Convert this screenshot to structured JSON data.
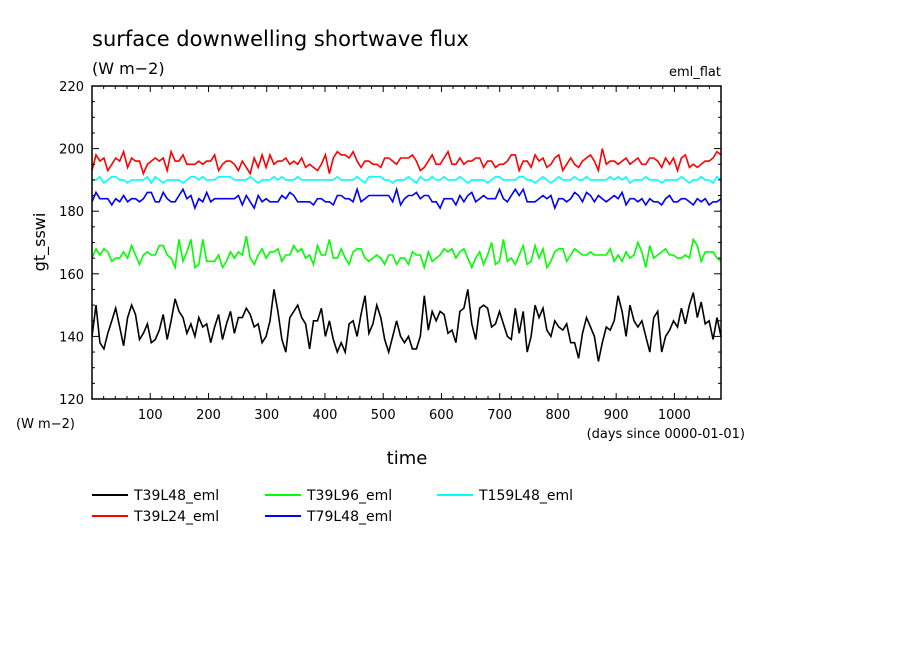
{
  "chart_data": {
    "type": "line",
    "title": "surface downwelling shortwave flux",
    "subtitle": "(W m−2)",
    "corner_label": "eml_flat",
    "xlabel": "time",
    "x_unit_label": "(days since 0000-01-01)",
    "ylabel": "gt_sswi",
    "y_unit_label": "(W m−2)",
    "xlim": [
      0,
      1080
    ],
    "ylim": [
      120,
      220
    ],
    "x_ticks": [
      "100",
      "200",
      "300",
      "400",
      "500",
      "600",
      "700",
      "800",
      "900",
      "1000"
    ],
    "y_ticks": [
      "120",
      "140",
      "160",
      "180",
      "200",
      "220"
    ],
    "grid": false,
    "legend_position": "bottom",
    "series": [
      {
        "name": "T39L48_eml",
        "color": "#000000",
        "values": [
          140,
          150,
          138,
          136,
          141,
          145,
          149,
          143,
          137,
          146,
          150,
          147,
          139,
          141,
          144,
          138,
          139,
          142,
          147,
          139,
          145,
          152,
          148,
          146,
          141,
          144,
          140,
          146,
          143,
          144,
          138,
          143,
          147,
          139,
          144,
          148,
          141,
          146,
          146,
          149,
          147,
          143,
          144,
          138,
          140,
          145,
          155,
          148,
          139,
          135,
          146,
          148,
          150,
          146,
          144,
          136,
          145,
          145,
          149,
          140,
          145,
          139,
          135,
          138,
          135,
          144,
          145,
          140,
          147,
          153,
          141,
          144,
          150,
          146,
          139,
          135,
          140,
          145,
          140,
          138,
          140,
          136,
          136,
          140,
          153,
          142,
          148,
          145,
          148,
          147,
          141,
          142,
          138,
          148,
          149,
          155,
          144,
          139,
          149,
          150,
          149,
          143,
          144,
          148,
          144,
          140,
          139,
          149,
          141,
          148,
          135,
          140,
          150,
          146,
          149,
          142,
          140,
          145,
          143,
          142,
          144,
          138,
          138,
          133,
          141,
          146,
          143,
          140,
          132,
          138,
          143,
          142,
          145,
          153,
          148,
          140,
          150,
          145,
          143,
          145,
          140,
          135,
          146,
          148,
          135,
          140,
          142,
          145,
          143,
          149,
          144,
          150,
          154,
          146,
          151,
          144,
          145,
          139,
          146,
          140
        ]
      },
      {
        "name": "T39L24_eml",
        "color": "#ff0000",
        "values": [
          193,
          198,
          196,
          197,
          193,
          195,
          197,
          196,
          199,
          194,
          197,
          196,
          196,
          192,
          195,
          196,
          197,
          196,
          197,
          193,
          199,
          196,
          196,
          198,
          195,
          195,
          195,
          196,
          195,
          196,
          196,
          198,
          193,
          195,
          196,
          196,
          195,
          193,
          196,
          194,
          192,
          197,
          194,
          198,
          194,
          198,
          195,
          196,
          196,
          197,
          195,
          196,
          195,
          197,
          194,
          195,
          194,
          193,
          195,
          198,
          192,
          197,
          199,
          198,
          198,
          197,
          199,
          196,
          194,
          196,
          196,
          195,
          195,
          194,
          197,
          197,
          196,
          195,
          197,
          197,
          197,
          198,
          196,
          193,
          194,
          196,
          198,
          195,
          195,
          197,
          199,
          195,
          195,
          197,
          195,
          196,
          196,
          197,
          197,
          194,
          196,
          196,
          194,
          195,
          195,
          196,
          198,
          198,
          193,
          196,
          196,
          194,
          198,
          196,
          197,
          194,
          195,
          197,
          198,
          193,
          195,
          197,
          195,
          194,
          196,
          197,
          198,
          196,
          193,
          200,
          195,
          196,
          196,
          195,
          196,
          197,
          195,
          196,
          197,
          195,
          195,
          197,
          197,
          196,
          194,
          197,
          195,
          197,
          193,
          197,
          198,
          194,
          195,
          194,
          195,
          196,
          196,
          197,
          199,
          198
        ]
      },
      {
        "name": "T39L96_eml",
        "color": "#00ff00",
        "values": [
          165,
          168,
          166,
          168,
          167,
          164,
          165,
          165,
          167,
          165,
          169,
          166,
          163,
          166,
          167,
          166,
          166,
          169,
          169,
          166,
          165,
          162,
          171,
          164,
          167,
          171,
          162,
          163,
          171,
          164,
          164,
          164,
          166,
          162,
          164,
          167,
          165,
          167,
          166,
          172,
          165,
          163,
          166,
          168,
          165,
          167,
          167,
          168,
          164,
          166,
          166,
          169,
          167,
          168,
          165,
          166,
          163,
          169,
          166,
          166,
          171,
          165,
          165,
          168,
          165,
          163,
          167,
          168,
          168,
          165,
          164,
          165,
          166,
          165,
          163,
          166,
          166,
          163,
          165,
          165,
          163,
          167,
          166,
          166,
          162,
          167,
          164,
          165,
          166,
          168,
          167,
          168,
          165,
          167,
          168,
          165,
          162,
          165,
          167,
          163,
          166,
          170,
          163,
          164,
          171,
          164,
          165,
          163,
          166,
          169,
          163,
          164,
          169,
          165,
          168,
          162,
          164,
          167,
          168,
          168,
          164,
          166,
          168,
          167,
          166,
          166,
          167,
          166,
          166,
          166,
          166,
          168,
          164,
          166,
          164,
          167,
          165,
          166,
          170,
          167,
          162,
          169,
          165,
          166,
          167,
          168,
          166,
          166,
          165,
          165,
          166,
          165,
          171,
          169,
          164,
          167,
          167,
          167,
          165,
          164
        ]
      },
      {
        "name": "T79L48_eml",
        "color": "#0000ff",
        "values": [
          183,
          186,
          184,
          184,
          184,
          182,
          184,
          183,
          185,
          183,
          184,
          184,
          183,
          184,
          186,
          186,
          183,
          183,
          186,
          184,
          183,
          183,
          185,
          187,
          184,
          185,
          181,
          184,
          183,
          186,
          183,
          184,
          184,
          184,
          184,
          184,
          184,
          185,
          182,
          185,
          183,
          181,
          185,
          183,
          184,
          183,
          183,
          183,
          185,
          184,
          186,
          185,
          183,
          183,
          183,
          183,
          182,
          184,
          184,
          183,
          183,
          182,
          185,
          185,
          184,
          184,
          183,
          187,
          183,
          184,
          185,
          185,
          185,
          185,
          185,
          185,
          183,
          187,
          182,
          184,
          185,
          185,
          186,
          184,
          185,
          185,
          183,
          183,
          181,
          184,
          184,
          184,
          182,
          185,
          183,
          185,
          186,
          183,
          184,
          185,
          184,
          184,
          184,
          187,
          184,
          183,
          185,
          187,
          185,
          187,
          183,
          183,
          183,
          184,
          185,
          184,
          185,
          181,
          184,
          184,
          183,
          184,
          186,
          185,
          183,
          186,
          185,
          183,
          185,
          184,
          183,
          184,
          185,
          184,
          186,
          182,
          184,
          184,
          183,
          184,
          182,
          184,
          183,
          183,
          182,
          184,
          185,
          183,
          183,
          184,
          184,
          183,
          182,
          184,
          183,
          184,
          182,
          183,
          183,
          184
        ]
      },
      {
        "name": "T159L48_eml",
        "color": "#00ffff",
        "values": [
          190,
          190,
          191,
          189,
          190,
          191,
          191,
          190,
          190,
          189,
          190,
          190,
          190,
          190,
          191,
          189,
          191,
          190,
          189,
          190,
          190,
          190,
          190,
          189,
          190,
          191,
          191,
          190,
          191,
          190,
          190,
          190,
          191,
          191,
          191,
          191,
          190,
          190,
          190,
          190,
          191,
          190,
          189,
          190,
          190,
          190,
          191,
          190,
          191,
          190,
          190,
          190,
          191,
          190,
          190,
          190,
          190,
          190,
          190,
          190,
          190,
          190,
          191,
          190,
          190,
          190,
          190,
          191,
          190,
          189,
          191,
          191,
          191,
          191,
          190,
          190,
          189,
          190,
          190,
          190,
          191,
          190,
          189,
          191,
          190,
          190,
          191,
          190,
          190,
          191,
          190,
          190,
          190,
          191,
          190,
          189,
          190,
          190,
          190,
          190,
          189,
          190,
          191,
          191,
          190,
          190,
          190,
          190,
          191,
          191,
          190,
          190,
          189,
          190,
          191,
          190,
          189,
          190,
          191,
          190,
          190,
          190,
          191,
          190,
          190,
          191,
          190,
          190,
          190,
          190,
          190,
          191,
          190,
          191,
          190,
          191,
          189,
          190,
          190,
          190,
          191,
          190,
          190,
          190,
          189,
          190,
          190,
          190,
          190,
          191,
          190,
          189,
          190,
          190,
          191,
          190,
          190,
          189,
          191,
          190
        ]
      }
    ]
  }
}
